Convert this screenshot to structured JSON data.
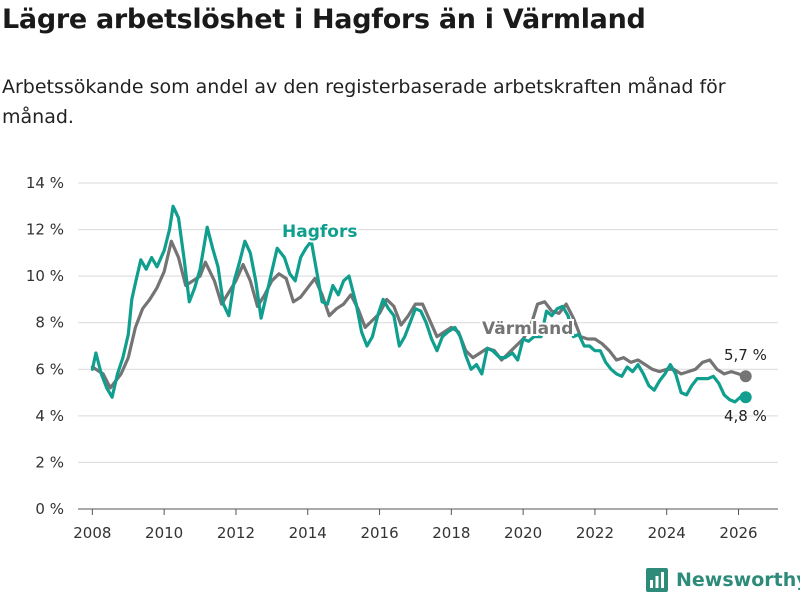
{
  "title": "Lägre arbetslöshet i Hagfors än i Värmland",
  "subtitle": "Arbetssökande som andel av den registerbaserade arbetskraften månad för månad.",
  "brand": "Newsworthy",
  "colors": {
    "hagfors": "#109e8e",
    "varmland": "#747474",
    "grid": "#d9d9d9"
  },
  "chart_data": {
    "type": "line",
    "ylim": [
      0,
      14
    ],
    "xlim": [
      2007.6,
      2027.1
    ],
    "yticks": [
      {
        "value": 0,
        "label": "0 %"
      },
      {
        "value": 2,
        "label": "2 %"
      },
      {
        "value": 4,
        "label": "4 %"
      },
      {
        "value": 6,
        "label": "6 %"
      },
      {
        "value": 8,
        "label": "8 %"
      },
      {
        "value": 10,
        "label": "10 %"
      },
      {
        "value": 12,
        "label": "12 %"
      },
      {
        "value": 14,
        "label": "14 %"
      }
    ],
    "xticks": [
      {
        "value": 2008,
        "label": "2008"
      },
      {
        "value": 2010,
        "label": "2010"
      },
      {
        "value": 2012,
        "label": "2012"
      },
      {
        "value": 2014,
        "label": "2014"
      },
      {
        "value": 2016,
        "label": "2016"
      },
      {
        "value": 2018,
        "label": "2018"
      },
      {
        "value": 2020,
        "label": "2020"
      },
      {
        "value": 2022,
        "label": "2022"
      },
      {
        "value": 2024,
        "label": "2024"
      },
      {
        "value": 2026,
        "label": "2026"
      }
    ],
    "series": [
      {
        "name": "Värmland",
        "label": "Värmland",
        "end_label": "5,7 %",
        "points": [
          [
            2008.0,
            6.1
          ],
          [
            2008.3,
            5.8
          ],
          [
            2008.5,
            5.2
          ],
          [
            2008.8,
            5.8
          ],
          [
            2009.0,
            6.5
          ],
          [
            2009.2,
            7.8
          ],
          [
            2009.4,
            8.6
          ],
          [
            2009.6,
            9.0
          ],
          [
            2009.8,
            9.5
          ],
          [
            2010.0,
            10.2
          ],
          [
            2010.2,
            11.5
          ],
          [
            2010.4,
            10.8
          ],
          [
            2010.6,
            9.6
          ],
          [
            2010.8,
            9.8
          ],
          [
            2011.0,
            10.0
          ],
          [
            2011.15,
            10.6
          ],
          [
            2011.4,
            9.8
          ],
          [
            2011.6,
            8.8
          ],
          [
            2011.8,
            9.3
          ],
          [
            2012.0,
            9.8
          ],
          [
            2012.2,
            10.5
          ],
          [
            2012.4,
            9.8
          ],
          [
            2012.6,
            8.7
          ],
          [
            2012.8,
            9.2
          ],
          [
            2013.0,
            9.8
          ],
          [
            2013.2,
            10.1
          ],
          [
            2013.4,
            9.9
          ],
          [
            2013.6,
            8.9
          ],
          [
            2013.8,
            9.1
          ],
          [
            2014.0,
            9.5
          ],
          [
            2014.2,
            9.9
          ],
          [
            2014.4,
            9.2
          ],
          [
            2014.6,
            8.3
          ],
          [
            2014.8,
            8.6
          ],
          [
            2015.0,
            8.8
          ],
          [
            2015.2,
            9.2
          ],
          [
            2015.4,
            8.6
          ],
          [
            2015.6,
            7.8
          ],
          [
            2015.8,
            8.1
          ],
          [
            2016.0,
            8.4
          ],
          [
            2016.2,
            9.0
          ],
          [
            2016.4,
            8.7
          ],
          [
            2016.6,
            7.9
          ],
          [
            2016.8,
            8.3
          ],
          [
            2017.0,
            8.8
          ],
          [
            2017.2,
            8.8
          ],
          [
            2017.4,
            8.1
          ],
          [
            2017.6,
            7.4
          ],
          [
            2017.8,
            7.6
          ],
          [
            2018.0,
            7.8
          ],
          [
            2018.2,
            7.6
          ],
          [
            2018.4,
            6.8
          ],
          [
            2018.6,
            6.5
          ],
          [
            2018.8,
            6.7
          ],
          [
            2019.0,
            6.9
          ],
          [
            2019.2,
            6.8
          ],
          [
            2019.4,
            6.4
          ],
          [
            2019.6,
            6.7
          ],
          [
            2019.8,
            7.0
          ],
          [
            2020.0,
            7.3
          ],
          [
            2020.2,
            7.8
          ],
          [
            2020.4,
            8.8
          ],
          [
            2020.6,
            8.9
          ],
          [
            2020.8,
            8.5
          ],
          [
            2021.0,
            8.4
          ],
          [
            2021.2,
            8.8
          ],
          [
            2021.4,
            8.2
          ],
          [
            2021.6,
            7.4
          ],
          [
            2021.8,
            7.3
          ],
          [
            2022.0,
            7.3
          ],
          [
            2022.2,
            7.1
          ],
          [
            2022.4,
            6.8
          ],
          [
            2022.6,
            6.4
          ],
          [
            2022.8,
            6.5
          ],
          [
            2023.0,
            6.3
          ],
          [
            2023.2,
            6.4
          ],
          [
            2023.4,
            6.2
          ],
          [
            2023.6,
            6.0
          ],
          [
            2023.8,
            5.9
          ],
          [
            2024.0,
            6.0
          ],
          [
            2024.2,
            6.0
          ],
          [
            2024.4,
            5.8
          ],
          [
            2024.6,
            5.9
          ],
          [
            2024.8,
            6.0
          ],
          [
            2025.0,
            6.3
          ],
          [
            2025.2,
            6.4
          ],
          [
            2025.4,
            6.0
          ],
          [
            2025.6,
            5.8
          ],
          [
            2025.8,
            5.9
          ],
          [
            2026.0,
            5.8
          ],
          [
            2026.2,
            5.7
          ]
        ]
      },
      {
        "name": "Hagfors",
        "label": "Hagfors",
        "end_label": "4,8 %",
        "points": [
          [
            2008.0,
            6.0
          ],
          [
            2008.1,
            6.7
          ],
          [
            2008.25,
            5.8
          ],
          [
            2008.4,
            5.2
          ],
          [
            2008.55,
            4.8
          ],
          [
            2008.7,
            5.8
          ],
          [
            2008.85,
            6.5
          ],
          [
            2009.0,
            7.5
          ],
          [
            2009.1,
            9.0
          ],
          [
            2009.2,
            9.7
          ],
          [
            2009.35,
            10.7
          ],
          [
            2009.5,
            10.3
          ],
          [
            2009.65,
            10.8
          ],
          [
            2009.8,
            10.4
          ],
          [
            2010.0,
            11.1
          ],
          [
            2010.15,
            12.0
          ],
          [
            2010.25,
            13.0
          ],
          [
            2010.4,
            12.5
          ],
          [
            2010.55,
            10.8
          ],
          [
            2010.7,
            8.9
          ],
          [
            2010.85,
            9.5
          ],
          [
            2011.0,
            10.3
          ],
          [
            2011.2,
            12.1
          ],
          [
            2011.35,
            11.2
          ],
          [
            2011.5,
            10.4
          ],
          [
            2011.65,
            8.8
          ],
          [
            2011.8,
            8.3
          ],
          [
            2011.95,
            9.8
          ],
          [
            2012.1,
            10.6
          ],
          [
            2012.25,
            11.5
          ],
          [
            2012.4,
            11.0
          ],
          [
            2012.55,
            9.8
          ],
          [
            2012.7,
            8.2
          ],
          [
            2012.85,
            9.2
          ],
          [
            2013.0,
            10.2
          ],
          [
            2013.15,
            11.2
          ],
          [
            2013.35,
            10.8
          ],
          [
            2013.5,
            10.1
          ],
          [
            2013.65,
            9.8
          ],
          [
            2013.8,
            10.8
          ],
          [
            2013.95,
            11.2
          ],
          [
            2014.1,
            11.5
          ],
          [
            2014.25,
            10.2
          ],
          [
            2014.4,
            8.9
          ],
          [
            2014.55,
            8.8
          ],
          [
            2014.7,
            9.6
          ],
          [
            2014.85,
            9.2
          ],
          [
            2015.0,
            9.8
          ],
          [
            2015.15,
            10.0
          ],
          [
            2015.35,
            8.8
          ],
          [
            2015.5,
            7.6
          ],
          [
            2015.65,
            7.0
          ],
          [
            2015.8,
            7.4
          ],
          [
            2015.95,
            8.3
          ],
          [
            2016.1,
            9.0
          ],
          [
            2016.25,
            8.6
          ],
          [
            2016.4,
            8.3
          ],
          [
            2016.55,
            7.0
          ],
          [
            2016.7,
            7.4
          ],
          [
            2016.85,
            8.0
          ],
          [
            2017.0,
            8.6
          ],
          [
            2017.15,
            8.5
          ],
          [
            2017.3,
            8.0
          ],
          [
            2017.45,
            7.3
          ],
          [
            2017.6,
            6.8
          ],
          [
            2017.75,
            7.4
          ],
          [
            2017.9,
            7.6
          ],
          [
            2018.1,
            7.8
          ],
          [
            2018.25,
            7.4
          ],
          [
            2018.4,
            6.6
          ],
          [
            2018.55,
            6.0
          ],
          [
            2018.7,
            6.2
          ],
          [
            2018.85,
            5.8
          ],
          [
            2019.0,
            6.9
          ],
          [
            2019.15,
            6.8
          ],
          [
            2019.35,
            6.5
          ],
          [
            2019.5,
            6.5
          ],
          [
            2019.7,
            6.7
          ],
          [
            2019.85,
            6.4
          ],
          [
            2020.0,
            7.3
          ],
          [
            2020.15,
            7.2
          ],
          [
            2020.3,
            7.4
          ],
          [
            2020.5,
            7.4
          ],
          [
            2020.65,
            8.5
          ],
          [
            2020.8,
            8.3
          ],
          [
            2020.95,
            8.6
          ],
          [
            2021.1,
            8.7
          ],
          [
            2021.25,
            8.3
          ],
          [
            2021.4,
            7.4
          ],
          [
            2021.55,
            7.5
          ],
          [
            2021.7,
            7.0
          ],
          [
            2021.85,
            7.0
          ],
          [
            2022.0,
            6.8
          ],
          [
            2022.15,
            6.8
          ],
          [
            2022.3,
            6.3
          ],
          [
            2022.45,
            6.0
          ],
          [
            2022.6,
            5.8
          ],
          [
            2022.75,
            5.7
          ],
          [
            2022.9,
            6.1
          ],
          [
            2023.05,
            5.9
          ],
          [
            2023.2,
            6.2
          ],
          [
            2023.35,
            5.8
          ],
          [
            2023.5,
            5.3
          ],
          [
            2023.65,
            5.1
          ],
          [
            2023.8,
            5.5
          ],
          [
            2023.95,
            5.8
          ],
          [
            2024.1,
            6.2
          ],
          [
            2024.25,
            5.8
          ],
          [
            2024.4,
            5.0
          ],
          [
            2024.55,
            4.9
          ],
          [
            2024.7,
            5.3
          ],
          [
            2024.85,
            5.6
          ],
          [
            2025.0,
            5.6
          ],
          [
            2025.15,
            5.6
          ],
          [
            2025.3,
            5.7
          ],
          [
            2025.45,
            5.4
          ],
          [
            2025.6,
            4.9
          ],
          [
            2025.75,
            4.7
          ],
          [
            2025.9,
            4.6
          ],
          [
            2026.05,
            4.8
          ],
          [
            2026.2,
            4.8
          ]
        ]
      }
    ]
  }
}
